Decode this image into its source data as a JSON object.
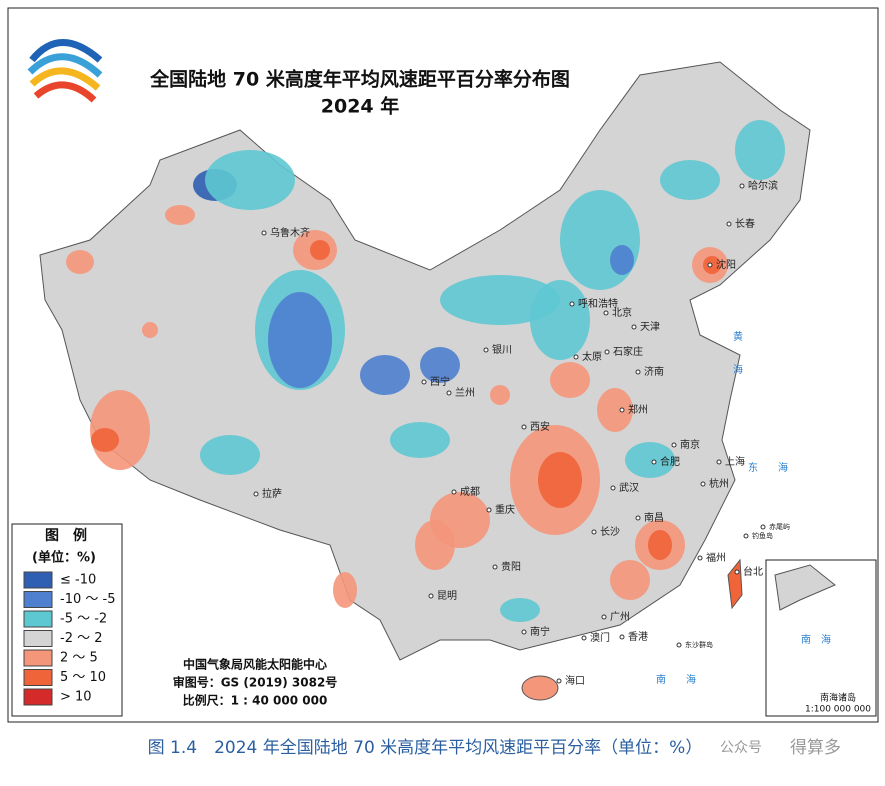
{
  "header": {
    "title": "全国陆地 70 米高度年平均风速距平百分率分布图",
    "subtitle": "2024 年"
  },
  "legend": {
    "title": "图　例",
    "unit": "(单位：%)",
    "items": [
      {
        "label": "≤ -10",
        "color": "#2f5fb3"
      },
      {
        "label": "-10 ～ -5",
        "color": "#4f7fcf"
      },
      {
        "label": "-5 ～ -2",
        "color": "#5ec8d2"
      },
      {
        "label": "-2 ～ 2",
        "color": "#d4d4d4"
      },
      {
        "label": "2 ～ 5",
        "color": "#f4967a"
      },
      {
        "label": "5 ～ 10",
        "color": "#f0643a"
      },
      {
        "label": "> 10",
        "color": "#d42a2a"
      }
    ]
  },
  "credits": [
    "中国气象局风能太阳能中心",
    "审图号：GS (2019) 3082号",
    "比例尺：1 : 40 000 000"
  ],
  "cities": [
    "乌鲁木齐",
    "哈尔滨",
    "长春",
    "沈阳",
    "呼和浩特",
    "北京",
    "天津",
    "银川",
    "太原",
    "石家庄",
    "济南",
    "西宁",
    "兰州",
    "郑州",
    "西安",
    "南京",
    "合肥",
    "上海",
    "成都",
    "武汉",
    "杭州",
    "重庆",
    "南昌",
    "长沙",
    "拉萨",
    "贵阳",
    "福州",
    "台北",
    "昆明",
    "广州",
    "南宁",
    "澳门",
    "香港",
    "海口",
    "东沙群岛",
    "赤尾屿",
    "钓鱼岛"
  ],
  "seas": [
    "黄",
    "海",
    "东",
    "海",
    "南",
    "海"
  ],
  "inset": {
    "sea": "南　海",
    "title": "南海诸岛",
    "scale": "1:100 000 000"
  },
  "caption": "图 1.4　2024 年全国陆地 70 米高度年平均风速距平百分率（单位：%）",
  "watermark": [
    "公众号",
    "得算多"
  ]
}
